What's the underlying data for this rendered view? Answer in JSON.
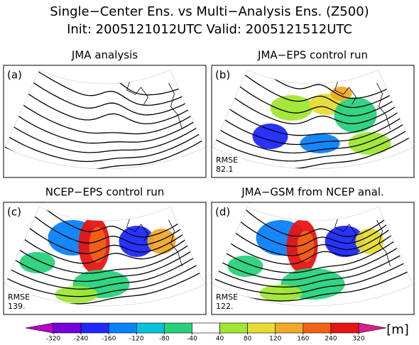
{
  "title": "Single−Center Ens. vs Multi−Analysis Ens. (Z500)",
  "subtitle": "Init: 2005121012UTC Valid: 2005121512UTC",
  "panels": [
    {
      "title": "JMA analysis",
      "label": "(a)"
    },
    {
      "title": "JMA−EPS control run",
      "label": "(b)",
      "rmse_label": "RMSE",
      "rmse": "82.1"
    },
    {
      "title": "NCEP−EPS control run",
      "label": "(c)",
      "rmse_label": "RMSE",
      "rmse": "139."
    },
    {
      "title": "JMA−GSM from NCEP anal.",
      "label": "(d)",
      "rmse_label": "RMSE",
      "rmse": "122."
    }
  ],
  "colorbar": {
    "ticks": [
      -320,
      -240,
      -160,
      -120,
      -80,
      -40,
      40,
      80,
      120,
      160,
      240,
      320
    ],
    "colors": [
      "#b400c8",
      "#7800dc",
      "#1e28ff",
      "#0a82ff",
      "#00c3dc",
      "#28d27d",
      "#ffffff",
      "#a0e632",
      "#e6dc32",
      "#f0aa28",
      "#f06414",
      "#e61414",
      "#dc1e8c"
    ],
    "unit": "[m]"
  }
}
